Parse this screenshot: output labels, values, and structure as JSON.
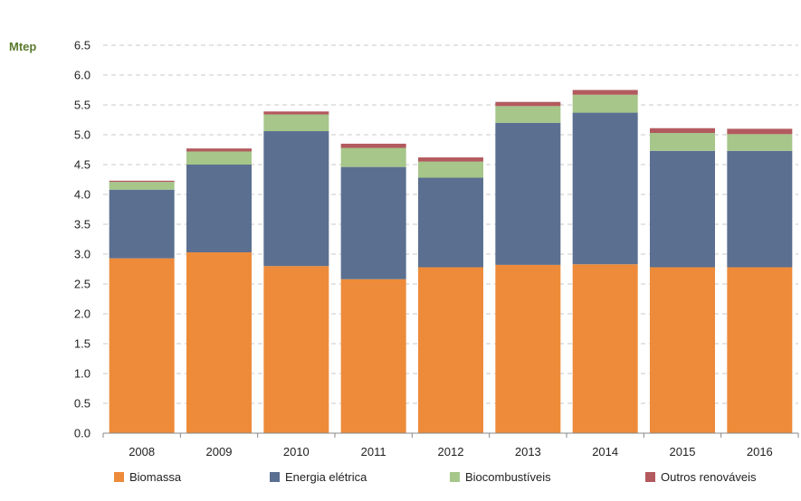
{
  "chart_data": {
    "type": "bar",
    "stacked": true,
    "title": "",
    "xlabel": "",
    "ylabel": "Mtep",
    "ylim": [
      0,
      6.5
    ],
    "yticks": [
      "0.0",
      "0.5",
      "1.0",
      "1.5",
      "2.0",
      "2.5",
      "3.0",
      "3.5",
      "4.0",
      "4.5",
      "5.0",
      "5.5",
      "6.0",
      "6.5"
    ],
    "categories": [
      "2008",
      "2009",
      "2010",
      "2011",
      "2012",
      "2013",
      "2014",
      "2015",
      "2016"
    ],
    "series": [
      {
        "name": "Biomassa",
        "color": "#ED8B3A",
        "values": [
          2.93,
          3.03,
          2.8,
          2.58,
          2.78,
          2.82,
          2.83,
          2.78,
          2.78
        ]
      },
      {
        "name": "Energia elétrica",
        "color": "#5B6F91",
        "values": [
          1.15,
          1.47,
          2.26,
          1.88,
          1.5,
          2.38,
          2.54,
          1.95,
          1.95
        ]
      },
      {
        "name": "Biocombustíveis",
        "color": "#A6C68A",
        "values": [
          0.13,
          0.22,
          0.28,
          0.32,
          0.27,
          0.28,
          0.3,
          0.3,
          0.28
        ]
      },
      {
        "name": "Outros renováveis",
        "color": "#B25A5E",
        "values": [
          0.02,
          0.05,
          0.05,
          0.07,
          0.07,
          0.07,
          0.08,
          0.08,
          0.09
        ]
      }
    ],
    "grid": true,
    "legend": "bottom",
    "unit_color": "#5A7A2E"
  }
}
